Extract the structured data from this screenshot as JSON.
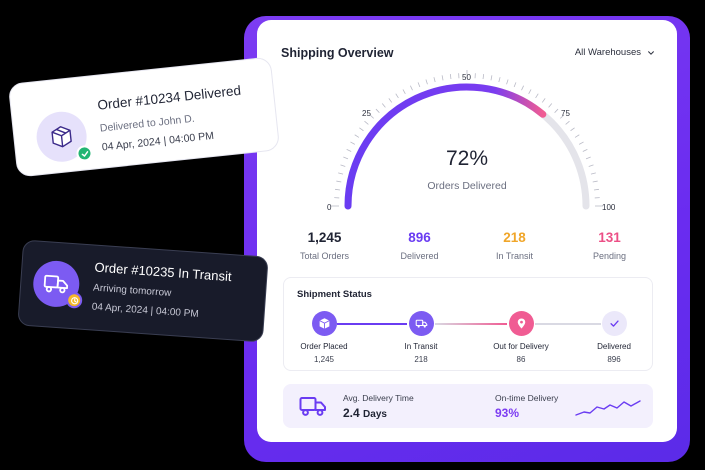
{
  "panel": {
    "title": "Shipping Overview",
    "warehouse_select": "All Warehouses"
  },
  "gauge": {
    "percent_text": "72%",
    "label": "Orders Delivered",
    "value": 72,
    "ticks": [
      "0",
      "25",
      "50",
      "75",
      "100"
    ],
    "colors": {
      "fill_start": "#6a3cf2",
      "fill_end": "#f05c93",
      "track": "#e4e4ea"
    }
  },
  "stats": [
    {
      "value": "1,245",
      "label": "Total Orders",
      "color": "#1f2333"
    },
    {
      "value": "896",
      "label": "Delivered",
      "color": "#6a3cf2"
    },
    {
      "value": "218",
      "label": "In Transit",
      "color": "#f0a62a"
    },
    {
      "value": "131",
      "label": "Pending",
      "color": "#ec4f86"
    }
  ],
  "shipment_status": {
    "title": "Shipment Status",
    "steps": [
      {
        "label": "Order Placed",
        "count": "1,245",
        "icon": "package-icon"
      },
      {
        "label": "In Transit",
        "count": "218",
        "icon": "truck-icon"
      },
      {
        "label": "Out for Delivery",
        "count": "86",
        "icon": "location-pin-icon"
      },
      {
        "label": "Delivered",
        "count": "896",
        "icon": "check-icon"
      }
    ]
  },
  "summary": {
    "avg_label": "Avg. Delivery Time",
    "avg_value": "2.4",
    "avg_unit": "Days",
    "ontime_label": "On-time Delivery",
    "ontime_value": "93%"
  },
  "card_delivered": {
    "title": "Order #10234 Delivered",
    "subtitle": "Delivered to John D.",
    "datetime": "04 Apr, 2024 | 04:00 PM",
    "icon": "package-icon",
    "badge": "check-icon"
  },
  "card_transit": {
    "title": "Order #10235 In Transit",
    "subtitle": "Arriving tomorrow",
    "datetime": "04 Apr, 2024 | 04:00 PM",
    "icon": "truck-icon",
    "badge": "clock-icon"
  }
}
